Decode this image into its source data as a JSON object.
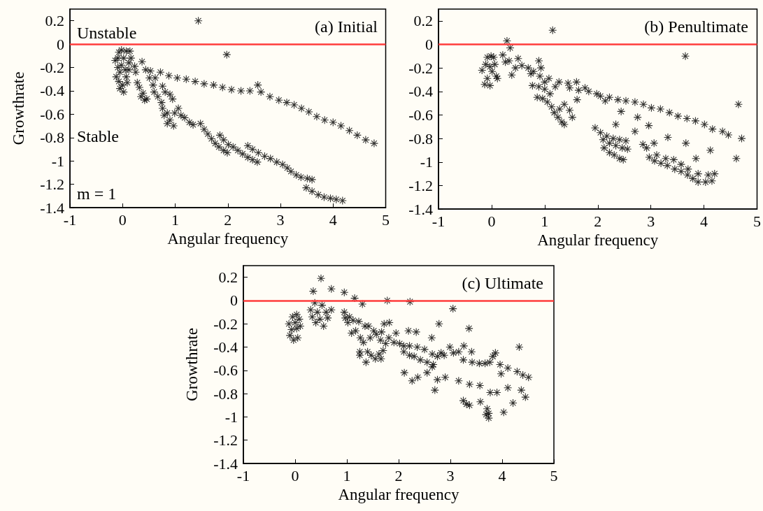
{
  "chart_data": [
    {
      "type": "scatter",
      "title": "(a) Initial",
      "xlabel": "Angular frequency",
      "ylabel": "Growthrate",
      "annotations": [
        "Unstable",
        "Stable",
        "m = 1"
      ],
      "xlim": [
        -1,
        5
      ],
      "xticks": [
        -1,
        0,
        1,
        2,
        3,
        4,
        5
      ],
      "ylim": [
        -1.4,
        0.3
      ],
      "yticks": [
        -1.4,
        -1.2,
        -1,
        -0.8,
        -0.6,
        -0.4,
        -0.2,
        0,
        0.2
      ],
      "marker": "star",
      "grid": false,
      "ref_lines": [
        {
          "axis": "y",
          "value": 0,
          "label": null,
          "color": "#ff3b3b"
        }
      ],
      "series": [
        {
          "color": "#000000",
          "x": [
            0.37,
            0.72,
            0.88,
            1.04,
            1.21,
            1.38,
            1.55,
            1.73,
            1.9,
            2.07,
            2.25,
            2.42,
            2.57,
            2.63,
            2.8,
            2.97,
            3.12,
            3.26,
            3.4,
            3.54,
            3.69,
            3.84,
            4.0,
            4.15,
            4.31,
            4.46,
            4.62,
            4.78,
            1.98,
            1.44,
            -0.14,
            -0.07,
            -0.02,
            0.07,
            0.14,
            0.16,
            0.12,
            -0.09,
            -0.05,
            -0.12,
            -0.07,
            0,
            0.02,
            0.09,
            0.07,
            0.05,
            -0.02,
            0.02,
            -0.09,
            0.12,
            -0.05,
            0.23,
            0.25,
            0.28,
            0.32,
            0.39,
            0.35,
            0.42,
            0.46,
            0.44,
            0.53,
            0.51,
            0.62,
            0.58,
            0.6,
            0.67,
            0.76,
            0.81,
            0.74,
            0.9,
            0.95,
            0.76,
            0.79,
            0.85,
            0.9,
            0.97,
            0.85,
            0.99,
            1.06,
            1.11,
            1.18,
            1.27,
            1.34,
            1.48,
            1.55,
            1.62,
            1.69,
            1.76,
            1.83,
            1.92,
            1.99,
            1.85,
            1.92,
            2.01,
            2.1,
            2.19,
            2.28,
            2.38,
            2.47,
            2.56,
            2.38,
            2.47,
            2.58,
            2.7,
            2.81,
            2.93,
            3.04,
            3.13,
            3.2,
            3.3,
            3.39,
            3.51,
            3.6,
            3.49,
            3.6,
            3.72,
            3.83,
            3.95,
            4.06,
            4.18
          ],
          "values": [
            -0.15,
            -0.24,
            -0.27,
            -0.29,
            -0.3,
            -0.32,
            -0.34,
            -0.35,
            -0.37,
            -0.39,
            -0.4,
            -0.4,
            -0.35,
            -0.41,
            -0.45,
            -0.48,
            -0.5,
            -0.52,
            -0.55,
            -0.58,
            -0.62,
            -0.65,
            -0.67,
            -0.7,
            -0.74,
            -0.78,
            -0.82,
            -0.85,
            -0.09,
            0.2,
            -0.14,
            -0.07,
            -0.05,
            -0.06,
            -0.06,
            -0.12,
            -0.16,
            -0.2,
            -0.24,
            -0.28,
            -0.32,
            -0.35,
            -0.41,
            -0.33,
            -0.28,
            -0.22,
            -0.18,
            -0.12,
            -0.12,
            -0.22,
            -0.38,
            -0.19,
            -0.24,
            -0.33,
            -0.37,
            -0.42,
            -0.45,
            -0.48,
            -0.47,
            -0.22,
            -0.23,
            -0.29,
            -0.29,
            -0.35,
            -0.41,
            -0.45,
            -0.36,
            -0.41,
            -0.5,
            -0.43,
            -0.47,
            -0.55,
            -0.61,
            -0.59,
            -0.65,
            -0.7,
            -0.68,
            -0.59,
            -0.55,
            -0.61,
            -0.63,
            -0.67,
            -0.69,
            -0.68,
            -0.73,
            -0.77,
            -0.81,
            -0.85,
            -0.88,
            -0.91,
            -0.93,
            -0.78,
            -0.82,
            -0.86,
            -0.88,
            -0.91,
            -0.94,
            -0.97,
            -0.99,
            -1.01,
            -0.87,
            -0.9,
            -0.93,
            -0.96,
            -0.98,
            -1.01,
            -1.03,
            -1.06,
            -1.09,
            -1.12,
            -1.14,
            -1.15,
            -1.16,
            -1.23,
            -1.26,
            -1.29,
            -1.31,
            -1.32,
            -1.33,
            -1.34
          ]
        }
      ]
    },
    {
      "type": "scatter",
      "title": "(b) Penultimate",
      "xlabel": "Angular frequency",
      "xlim": [
        -1,
        5
      ],
      "xticks": [
        -1,
        0,
        1,
        2,
        3,
        4,
        5
      ],
      "ylim": [
        -1.4,
        0.3
      ],
      "yticks": [
        -1.4,
        -1.2,
        -1,
        -0.8,
        -0.6,
        -0.4,
        -0.2,
        0,
        0.2
      ],
      "marker": "star",
      "grid": false,
      "ref_lines": [
        {
          "axis": "y",
          "value": 0,
          "label": null,
          "color": "#ff3b3b"
        }
      ],
      "series": [
        {
          "color": "#000000",
          "x": [
            -0.18,
            -0.08,
            -0.01,
            0.04,
            -0.11,
            -0.03,
            0.06,
            0.01,
            0.09,
            -0.08,
            -0.13,
            -0.03,
            0.11,
            0.29,
            0.35,
            0.21,
            0.26,
            0.33,
            0.38,
            0.45,
            0.5,
            0.57,
            0.69,
            0.74,
            0.79,
            0.77,
            0.89,
            0.89,
            0.93,
            0.91,
            0.86,
            0.96,
            1.0,
            1.0,
            1.08,
            1.1,
            1.05,
            1.13,
            1.18,
            1.25,
            1.32,
            1.37,
            1.28,
            1.37,
            1.47,
            1.52,
            1.2,
            1.27,
            1.44,
            1.47,
            1.6,
            1.64,
            1.61,
            1.76,
            1.83,
            1.98,
            2.05,
            2.14,
            2.22,
            2.38,
            2.44,
            2.34,
            2.53,
            2.7,
            2.86,
            3.01,
            3.18,
            3.35,
            3.51,
            3.68,
            3.84,
            4.01,
            4.16,
            4.35,
            4.46,
            4.71,
            4.65,
            4.61,
            3.65,
            1.15,
            2.75,
            2.7,
            2.96,
            3.06,
            3.32,
            3.66,
            3.85,
            4.12,
            1.95,
            2.05,
            2.17,
            2.29,
            2.41,
            2.53,
            2.1,
            2.22,
            2.34,
            2.46,
            2.56,
            2.12,
            2.22,
            2.31,
            2.41,
            2.48,
            2.85,
            2.92,
            2.97,
            3.07,
            3.19,
            3.31,
            3.43,
            3.45,
            3.57,
            3.69,
            3.79,
            3.89,
            4.03,
            4.15,
            4.2,
            4.08,
            3.89,
            3.7,
            3.11,
            3.28,
            3.57
          ],
          "values": [
            -0.22,
            -0.11,
            -0.1,
            -0.11,
            -0.17,
            -0.19,
            -0.17,
            -0.23,
            -0.27,
            -0.29,
            -0.34,
            -0.35,
            -0.29,
            0.03,
            -0.03,
            -0.09,
            -0.15,
            -0.14,
            -0.26,
            -0.2,
            -0.12,
            -0.18,
            -0.2,
            -0.25,
            -0.23,
            -0.35,
            -0.36,
            -0.14,
            -0.2,
            -0.27,
            -0.45,
            -0.46,
            -0.38,
            -0.32,
            -0.29,
            -0.42,
            -0.49,
            -0.53,
            -0.58,
            -0.62,
            -0.66,
            -0.68,
            -0.55,
            -0.51,
            -0.56,
            -0.62,
            -0.36,
            -0.32,
            -0.33,
            -0.37,
            -0.32,
            -0.39,
            -0.47,
            -0.37,
            -0.4,
            -0.42,
            -0.44,
            -0.48,
            -0.45,
            -0.47,
            -0.57,
            -0.68,
            -0.48,
            -0.49,
            -0.51,
            -0.54,
            -0.55,
            -0.58,
            -0.61,
            -0.63,
            -0.65,
            -0.68,
            -0.72,
            -0.74,
            -0.77,
            -0.8,
            -0.51,
            -0.97,
            -0.1,
            0.12,
            -0.62,
            -0.74,
            -0.69,
            -0.84,
            -0.79,
            -0.84,
            -0.97,
            -0.9,
            -0.71,
            -0.75,
            -0.78,
            -0.8,
            -0.81,
            -0.82,
            -0.81,
            -0.84,
            -0.86,
            -0.88,
            -0.89,
            -0.88,
            -0.92,
            -0.94,
            -0.97,
            -0.98,
            -0.85,
            -0.88,
            -0.96,
            -0.99,
            -1.01,
            -1.03,
            -0.98,
            -1.06,
            -1.08,
            -1.11,
            -1.14,
            -1.17,
            -1.17,
            -1.16,
            -1.1,
            -1.11,
            -1.1,
            -1.06,
            -0.94,
            -0.97,
            -1.02
          ]
        }
      ]
    },
    {
      "type": "scatter",
      "title": "(c) Ultimate",
      "xlabel": "Angular frequency",
      "ylabel": "Growthrate",
      "xlim": [
        -1,
        5
      ],
      "xticks": [
        -1,
        0,
        1,
        2,
        3,
        4,
        5
      ],
      "ylim": [
        -1.4,
        0.3
      ],
      "yticks": [
        -1.4,
        -1.2,
        -1,
        -0.8,
        -0.6,
        -0.4,
        -0.2,
        0,
        0.2
      ],
      "marker": "star",
      "grid": false,
      "ref_lines": [
        {
          "axis": "y",
          "value": 0,
          "label": null,
          "color": "#ff3b3b"
        }
      ],
      "series": [
        {
          "color": "#000000",
          "x": [
            -0.12,
            -0.05,
            0.03,
            0.08,
            0.1,
            0.03,
            -0.07,
            -0.1,
            -0.03,
            0.05,
            0,
            0.35,
            0.5,
            0.7,
            0.38,
            0.52,
            0.3,
            0.33,
            0.43,
            0.48,
            0.4,
            0.55,
            0.63,
            0.7,
            0.6,
            0.95,
            1.15,
            1.3,
            1.78,
            2.22,
            3.05,
            0.95,
            0.97,
            1.05,
            1.02,
            1.12,
            1.09,
            1.17,
            1.23,
            1.26,
            1.32,
            1.25,
            1.25,
            1.37,
            1.35,
            1.42,
            1.4,
            1.47,
            1.45,
            1.52,
            1.57,
            1.55,
            1.62,
            1.7,
            1.66,
            1.67,
            1.65,
            1.75,
            1.72,
            1.82,
            1.81,
            1.95,
            1.91,
            2.02,
            2.1,
            2.1,
            2.11,
            2.19,
            2.34,
            2.21,
            2.21,
            2.3,
            2.26,
            2.37,
            2.36,
            2.42,
            2.5,
            2.55,
            2.55,
            2.64,
            2.65,
            2.65,
            2.67,
            2.7,
            2.75,
            2.75,
            2.78,
            2.82,
            2.88,
            2.9,
            2.99,
            3.06,
            3.16,
            3.16,
            3.25,
            3.26,
            3.25,
            3.31,
            3.37,
            3.36,
            3.37,
            3.41,
            3.42,
            3.56,
            3.57,
            3.58,
            3.67,
            3.76,
            3.71,
            3.74,
            3.69,
            3.74,
            3.77,
            3.9,
            3.82,
            3.87,
            3.96,
            3.98,
            4.03,
            4.11,
            4.11,
            4.21,
            4.29,
            4.33,
            4.37,
            4.4,
            4.45,
            4.51
          ],
          "values": [
            -0.2,
            -0.14,
            -0.12,
            -0.16,
            -0.22,
            -0.24,
            -0.25,
            -0.3,
            -0.34,
            -0.32,
            -0.19,
            0.08,
            0.19,
            0.1,
            -0.02,
            -0.04,
            -0.08,
            -0.14,
            -0.1,
            -0.16,
            -0.19,
            -0.22,
            -0.15,
            -0.08,
            -0.1,
            0.07,
            0.02,
            -0.03,
            0.0,
            -0.01,
            -0.07,
            -0.1,
            -0.15,
            -0.14,
            -0.19,
            -0.17,
            -0.28,
            -0.26,
            -0.18,
            -0.32,
            -0.36,
            -0.44,
            -0.47,
            -0.53,
            -0.22,
            -0.22,
            -0.44,
            -0.47,
            -0.32,
            -0.26,
            -0.29,
            -0.5,
            -0.46,
            -0.43,
            -0.5,
            -0.27,
            -0.34,
            -0.37,
            -0.2,
            -0.19,
            -0.32,
            -0.28,
            -0.36,
            -0.37,
            -0.39,
            -0.44,
            -0.62,
            -0.26,
            -0.27,
            -0.39,
            -0.47,
            -0.48,
            -0.69,
            -0.66,
            -0.4,
            -0.51,
            -0.42,
            -0.53,
            -0.62,
            -0.32,
            -0.46,
            -0.57,
            -0.55,
            -0.77,
            -0.48,
            -0.68,
            -0.2,
            -0.45,
            -0.47,
            -0.66,
            -0.4,
            -0.45,
            -0.44,
            -0.69,
            -0.51,
            -0.39,
            -0.86,
            -0.89,
            -0.9,
            -0.24,
            -0.72,
            -0.44,
            -0.53,
            -0.54,
            -0.73,
            -0.87,
            -0.54,
            -0.53,
            -0.93,
            -0.97,
            -0.98,
            -1.01,
            -0.79,
            -0.79,
            -0.48,
            -0.45,
            -0.55,
            -0.63,
            -0.96,
            -0.58,
            -0.75,
            -0.88,
            -0.61,
            -0.4,
            -0.77,
            -0.64,
            -0.83,
            -0.66
          ]
        }
      ]
    }
  ]
}
